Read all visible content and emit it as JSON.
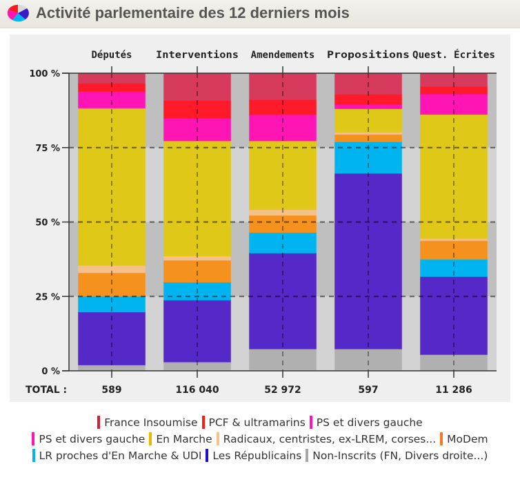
{
  "header": {
    "title": "Activité parlementaire des 12 derniers mois",
    "logo_icon": "pie-chart-icon"
  },
  "chart_data": {
    "type": "bar",
    "stacked": true,
    "normalized": true,
    "title": "Activité parlementaire des 12 derniers mois",
    "xlabel": "",
    "ylabel": "",
    "ylim": [
      0,
      100
    ],
    "y_ticks": [
      "0 %",
      "25 %",
      "50 %",
      "75 %",
      "100 %"
    ],
    "y_tick_values": [
      0,
      25,
      50,
      75,
      100
    ],
    "grid": true,
    "legend_position": "bottom",
    "categories": [
      "Députés",
      "Interventions",
      "Amendements",
      "Propositions",
      "Quest. Écrites"
    ],
    "totals_label": "TOTAL :",
    "totals": [
      "589",
      "116 040",
      "52 972",
      "597",
      "11 286"
    ],
    "series": [
      {
        "name": "France Insoumise",
        "color": "#d63a5c",
        "values": [
          3.5,
          9.3,
          9.0,
          7.2,
          4.6
        ]
      },
      {
        "name": "PCF & ultramarins",
        "color": "#ff1a2a",
        "values": [
          2.8,
          6.0,
          5.1,
          3.5,
          2.5
        ]
      },
      {
        "name": "PS et divers gauche",
        "color": "#ff14b4",
        "values": [
          5.6,
          7.6,
          8.8,
          1.4,
          6.9
        ]
      },
      {
        "name": "En Marche",
        "color": "#e0c818",
        "values": [
          52.8,
          38.7,
          23.1,
          7.9,
          41.7
        ]
      },
      {
        "name": "Radicaux, centristes, ex-LREM, corses...",
        "color": "#f5c08a",
        "values": [
          2.5,
          1.4,
          1.9,
          0.7,
          0.7
        ]
      },
      {
        "name": "MoDem",
        "color": "#f5921e",
        "values": [
          7.9,
          7.4,
          5.8,
          2.5,
          6.3
        ]
      },
      {
        "name": "LR proches d'En Marche & UDI",
        "color": "#00b4ef",
        "values": [
          5.3,
          6.0,
          6.9,
          10.6,
          5.8
        ]
      },
      {
        "name": "Les Républicains",
        "color": "#5528c8",
        "values": [
          17.8,
          20.8,
          32.2,
          59.0,
          26.2
        ]
      },
      {
        "name": "Non-Inscrits (FN, Divers droite...)",
        "color": "#b0b0b0",
        "values": [
          1.6,
          2.5,
          6.9,
          6.9,
          5.1
        ]
      }
    ]
  },
  "legend": {
    "rows": [
      [
        {
          "label": "France Insoumise",
          "color": "#d6202e"
        },
        {
          "label": "PCF & ultramarins",
          "color": "#ff1a1a"
        },
        {
          "label": "PS et divers gauche",
          "color": "#ff14b4"
        }
      ],
      [
        {
          "label": "PS et divers gauche",
          "color": "#ff14b4"
        },
        {
          "label": "En Marche",
          "color": "#e6b800"
        },
        {
          "label": "Radicaux, centristes, ex-LREM, corses...",
          "color": "#f9c08a"
        },
        {
          "label": "MoDem",
          "color": "#f57a1e"
        }
      ],
      [
        {
          "label": "LR proches d'En Marche & UDI",
          "color": "#00b4ef"
        },
        {
          "label": "Les Républicains",
          "color": "#2010c8"
        },
        {
          "label": "Non-Inscrits (FN, Divers droite...)",
          "color": "#a8a8a8"
        }
      ]
    ]
  }
}
